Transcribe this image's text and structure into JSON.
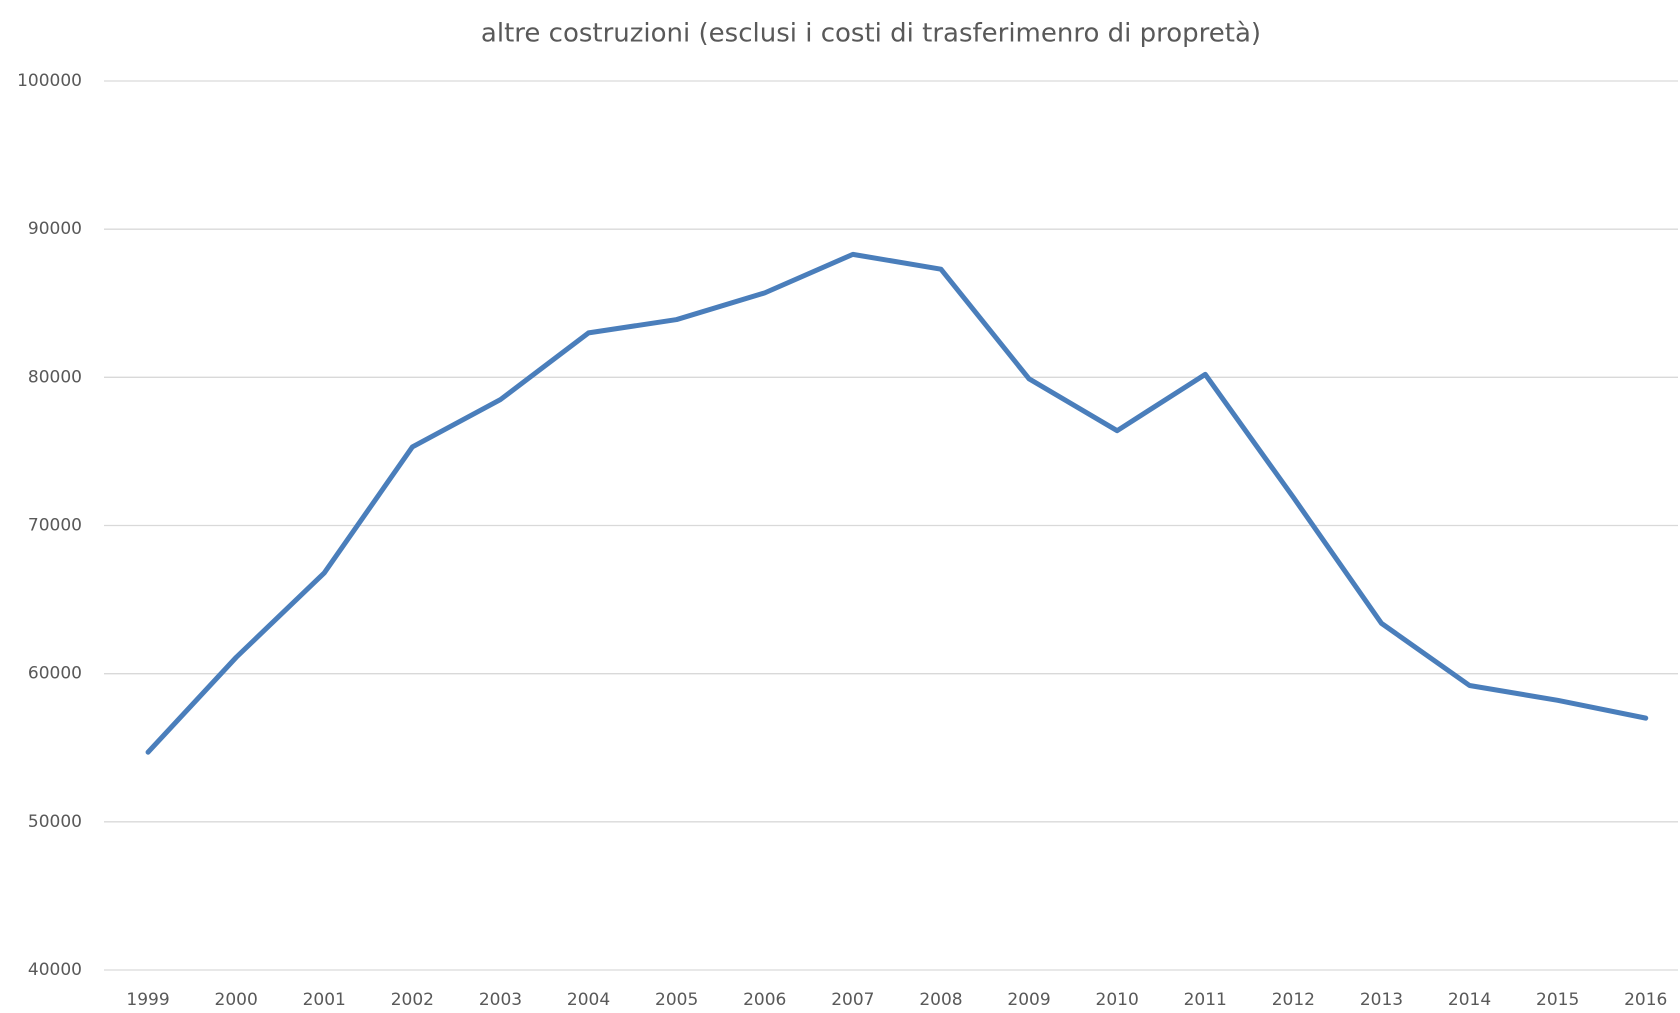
{
  "chart_data": {
    "type": "line",
    "title": "altre costruzioni (esclusi i costi di trasferimenro di propretà)",
    "categories": [
      "1999",
      "2000",
      "2001",
      "2002",
      "2003",
      "2004",
      "2005",
      "2006",
      "2007",
      "2008",
      "2009",
      "2010",
      "2011",
      "2012",
      "2013",
      "2014",
      "2015",
      "2016"
    ],
    "series": [
      {
        "name": "altre costruzioni",
        "color": "#4a7ebb",
        "values": [
          54700,
          61100,
          66800,
          75300,
          78500,
          83000,
          83900,
          85700,
          88300,
          87300,
          79900,
          76400,
          80200,
          71900,
          63400,
          59200,
          58200,
          57000
        ]
      }
    ],
    "ylim": [
      40000,
      100000
    ],
    "yticks": [
      40000,
      50000,
      60000,
      70000,
      80000,
      90000,
      100000
    ],
    "grid": true
  }
}
